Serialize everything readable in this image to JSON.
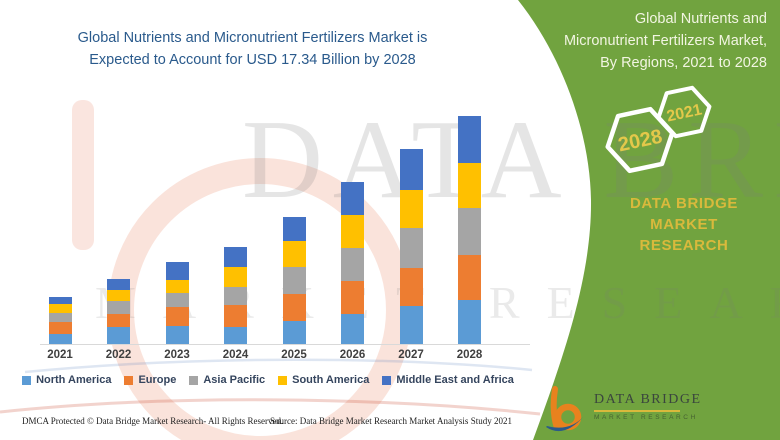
{
  "main_title": {
    "line1": "Global Nutrients and Micronutrient Fertilizers Market is",
    "line2": "Expected to Account for USD 17.34 Billion by 2028"
  },
  "panel": {
    "heading_line1": "Global Nutrients and",
    "heading_line2": "Micronutrient Fertilizers Market,",
    "heading_line3": "By Regions, 2021 to 2028",
    "hex_large_label": "2028",
    "hex_small_label": "2021",
    "brand_line1": "DATA BRIDGE MARKET",
    "brand_line2": "RESEARCH",
    "background_color": "#71A33F",
    "gold_color": "#D9B93C",
    "hex_number_color": "#E3C84A",
    "hex_stroke_color": "#FFFFFF"
  },
  "chart_data": {
    "type": "bar",
    "stacked": true,
    "title": "Global Nutrients and Micronutrient Fertilizers Market is Expected to Account for USD 17.34 Billion by 2028",
    "unit": "USD Billion",
    "xlabel": "",
    "ylabel": "",
    "ylim": [
      0,
      18
    ],
    "grid": false,
    "legend_position": "bottom",
    "categories": [
      "2021",
      "2022",
      "2023",
      "2024",
      "2025",
      "2026",
      "2027",
      "2028"
    ],
    "series": [
      {
        "name": "North America",
        "color": "#5B9BD5",
        "values": [
          0.76,
          1.32,
          1.37,
          1.32,
          1.73,
          2.28,
          2.87,
          3.37
        ]
      },
      {
        "name": "Europe",
        "color": "#ED7D31",
        "values": [
          0.89,
          0.97,
          1.42,
          1.67,
          2.1,
          2.49,
          2.92,
          3.37
        ]
      },
      {
        "name": "Asia Pacific",
        "color": "#A5A5A5",
        "values": [
          0.69,
          0.97,
          1.07,
          1.37,
          2.03,
          2.54,
          3.05,
          3.6
        ]
      },
      {
        "name": "South America",
        "color": "#FFC000",
        "values": [
          0.71,
          0.82,
          1.02,
          1.47,
          2.0,
          2.5,
          2.89,
          3.43
        ]
      },
      {
        "name": "Middle East and Africa",
        "color": "#4472C4",
        "values": [
          0.55,
          0.82,
          1.32,
          1.57,
          1.84,
          2.49,
          3.07,
          3.57
        ]
      }
    ]
  },
  "footer": {
    "dmca": "DMCA Protected © Data Bridge Market Research- All Rights Reserved.",
    "source": "Source: Data Bridge Market Research Market Analysis Study 2021"
  },
  "logo": {
    "name": "DATA BRIDGE",
    "tagline": "MARKET RESEARCH"
  },
  "watermark": {
    "row1": "DATA BRIDGE",
    "row2": "MARKET RESEARCH"
  }
}
